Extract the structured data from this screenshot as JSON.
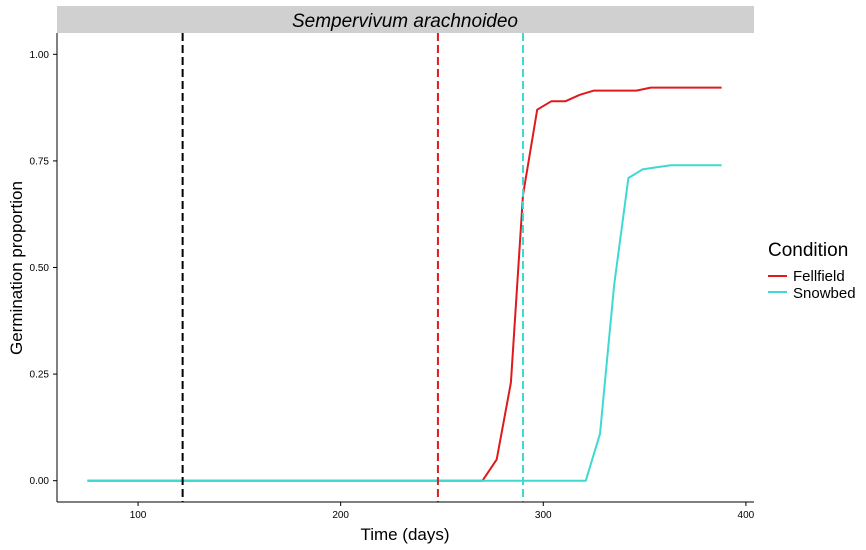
{
  "chart_data": {
    "type": "line",
    "facet_title": "Sempervivum arachnoideo",
    "xlabel": "Time (days)",
    "ylabel": "Germination proportion",
    "xlim": [
      60,
      404
    ],
    "ylim": [
      -0.05,
      1.05
    ],
    "x_ticks": [
      100,
      200,
      300,
      400
    ],
    "y_ticks": [
      0.0,
      0.25,
      0.5,
      0.75,
      1.0
    ],
    "y_tick_labels": [
      "0.00",
      "0.25",
      "0.50",
      "0.75",
      "1.00"
    ],
    "grid": false,
    "legend": {
      "title": "Condition",
      "position": "right",
      "entries": [
        "Fellfield",
        "Snowbed"
      ]
    },
    "series": [
      {
        "name": "Fellfield",
        "color": "#e0191c",
        "x": [
          75,
          270,
          277,
          284,
          290,
          297,
          304,
          311,
          318,
          325,
          332,
          339,
          346,
          353,
          360,
          367,
          374,
          381,
          388
        ],
        "y": [
          0.0,
          0.0,
          0.05,
          0.23,
          0.67,
          0.87,
          0.89,
          0.89,
          0.905,
          0.915,
          0.915,
          0.915,
          0.915,
          0.922,
          0.922,
          0.922,
          0.922,
          0.922,
          0.922
        ]
      },
      {
        "name": "Snowbed",
        "color": "#3dd9d2",
        "x": [
          75,
          321,
          328,
          335,
          342,
          349,
          356,
          363,
          370,
          377,
          388
        ],
        "y": [
          0.0,
          0.0,
          0.11,
          0.46,
          0.71,
          0.73,
          0.735,
          0.74,
          0.74,
          0.74,
          0.74
        ]
      }
    ],
    "vlines": [
      {
        "x": 122,
        "color": "#000000"
      },
      {
        "x": 248,
        "color": "#e0191c"
      },
      {
        "x": 290,
        "color": "#3dd9d2"
      }
    ]
  }
}
